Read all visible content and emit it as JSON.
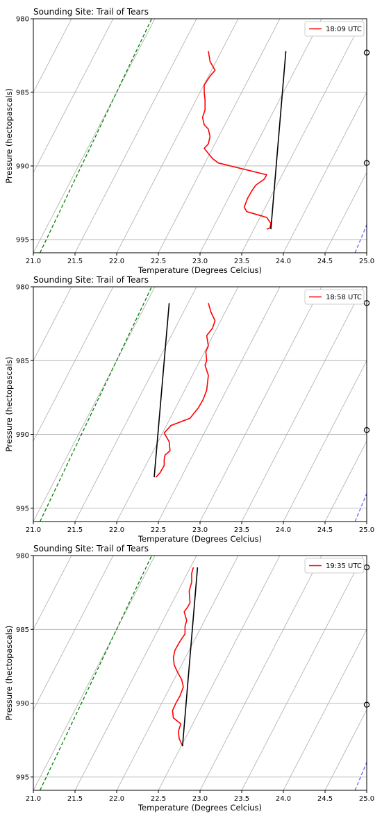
{
  "chart_data": [
    {
      "type": "line",
      "title": "Sounding Site: Trail of Tears",
      "xlabel": "Temperature (Degrees Celcius)",
      "ylabel": "Pressure (hectopascals)",
      "xlim": [
        21.0,
        25.0
      ],
      "ylim": [
        995.9,
        980.0
      ],
      "x_ticks": [
        "21.0",
        "21.5",
        "22.0",
        "22.5",
        "23.0",
        "23.5",
        "24.0",
        "24.5",
        "25.0"
      ],
      "y_ticks": [
        "980",
        "985",
        "990",
        "995"
      ],
      "grid": "horizontal",
      "legend_position": "top-right",
      "series": [
        {
          "name": "18:09 UTC",
          "color": "#ff0000",
          "x": [
            23.1,
            23.12,
            23.18,
            23.12,
            23.05,
            23.05,
            23.06,
            23.06,
            23.03,
            23.05,
            23.1,
            23.12,
            23.1,
            23.05,
            23.15,
            23.22,
            23.8,
            23.77,
            23.67,
            23.62,
            23.57,
            23.53,
            23.56,
            23.8,
            23.85,
            23.84,
            23.8
          ],
          "y": [
            982.2,
            982.9,
            983.5,
            983.9,
            984.5,
            985.0,
            985.5,
            986.2,
            986.7,
            987.2,
            987.5,
            988.0,
            988.5,
            988.8,
            989.5,
            989.8,
            990.6,
            990.9,
            991.3,
            991.7,
            992.2,
            992.8,
            993.1,
            993.5,
            993.9,
            994.2,
            994.3
          ]
        },
        {
          "name": "",
          "color": "#000000",
          "x": [
            23.85,
            24.03
          ],
          "y": [
            994.3,
            982.2
          ]
        },
        {
          "name": "",
          "color": "#008000",
          "dashed": true,
          "x": [
            21.08,
            22.42
          ],
          "y": [
            995.9,
            980.0
          ]
        },
        {
          "name": "",
          "color": "#6666ff",
          "dashed": true,
          "x": [
            24.86,
            25.0
          ],
          "y": [
            995.9,
            994.0
          ]
        }
      ],
      "markers": [
        {
          "x": 25.0,
          "y": 982.3
        },
        {
          "x": 25.0,
          "y": 989.8
        }
      ]
    },
    {
      "type": "line",
      "title": "Sounding Site: Trail of Tears",
      "xlabel": "Temperature (Degrees Celcius)",
      "ylabel": "Pressure (hectopascals)",
      "xlim": [
        21.0,
        25.0
      ],
      "ylim": [
        995.9,
        980.0
      ],
      "x_ticks": [
        "21.0",
        "21.5",
        "22.0",
        "22.5",
        "23.0",
        "23.5",
        "24.0",
        "24.5",
        "25.0"
      ],
      "y_ticks": [
        "980",
        "985",
        "990",
        "995"
      ],
      "grid": "horizontal",
      "legend_position": "top-right",
      "series": [
        {
          "name": "18:58 UTC",
          "color": "#ff0000",
          "x": [
            23.1,
            23.13,
            23.18,
            23.15,
            23.08,
            23.1,
            23.07,
            23.08,
            23.06,
            23.1,
            23.08,
            23.04,
            22.98,
            22.88,
            22.65,
            22.57,
            22.63,
            22.64,
            22.58,
            22.57,
            22.57,
            22.52,
            22.47
          ],
          "y": [
            981.1,
            981.7,
            982.3,
            982.8,
            983.3,
            984.0,
            984.4,
            985.0,
            985.3,
            986.0,
            987.0,
            987.6,
            988.2,
            988.9,
            989.4,
            989.9,
            990.5,
            991.1,
            991.4,
            991.7,
            992.1,
            992.6,
            992.9
          ]
        },
        {
          "name": "",
          "color": "#000000",
          "x": [
            22.45,
            22.63
          ],
          "y": [
            992.9,
            981.1
          ]
        },
        {
          "name": "",
          "color": "#008000",
          "dashed": true,
          "x": [
            21.08,
            22.42
          ],
          "y": [
            995.9,
            980.0
          ]
        },
        {
          "name": "",
          "color": "#6666ff",
          "dashed": true,
          "x": [
            24.86,
            25.0
          ],
          "y": [
            995.9,
            994.0
          ]
        }
      ],
      "markers": [
        {
          "x": 25.0,
          "y": 981.1
        },
        {
          "x": 25.0,
          "y": 989.7
        }
      ]
    },
    {
      "type": "line",
      "title": "Sounding Site: Trail of Tears",
      "xlabel": "Temperature (Degrees Celcius)",
      "ylabel": "Pressure (hectopascals)",
      "xlim": [
        21.0,
        25.0
      ],
      "ylim": [
        995.9,
        980.0
      ],
      "x_ticks": [
        "21.0",
        "21.5",
        "22.0",
        "22.5",
        "23.0",
        "23.5",
        "24.0",
        "24.5",
        "25.0"
      ],
      "y_ticks": [
        "980",
        "985",
        "990",
        "995"
      ],
      "grid": "horizontal",
      "legend_position": "top-right",
      "series": [
        {
          "name": "19:35 UTC",
          "color": "#ff0000",
          "x": [
            22.92,
            22.9,
            22.9,
            22.87,
            22.88,
            22.85,
            22.81,
            22.84,
            22.82,
            22.82,
            22.76,
            22.7,
            22.68,
            22.69,
            22.73,
            22.78,
            22.8,
            22.76,
            22.71,
            22.67,
            22.68,
            22.77,
            22.74,
            22.75,
            22.79
          ],
          "y": [
            980.8,
            981.2,
            981.8,
            982.4,
            983.2,
            983.5,
            983.8,
            984.4,
            984.8,
            985.3,
            985.8,
            986.4,
            986.9,
            987.4,
            987.9,
            988.4,
            988.9,
            989.5,
            990.0,
            990.5,
            991.0,
            991.4,
            991.9,
            992.4,
            992.9
          ]
        },
        {
          "name": "",
          "color": "#000000",
          "x": [
            22.79,
            22.97
          ],
          "y": [
            992.9,
            980.8
          ]
        },
        {
          "name": "",
          "color": "#008000",
          "dashed": true,
          "x": [
            21.08,
            22.42
          ],
          "y": [
            995.9,
            980.0
          ]
        },
        {
          "name": "",
          "color": "#6666ff",
          "dashed": true,
          "x": [
            24.86,
            25.0
          ],
          "y": [
            995.9,
            994.0
          ]
        }
      ],
      "markers": [
        {
          "x": 25.0,
          "y": 980.8
        },
        {
          "x": 25.0,
          "y": 990.1
        }
      ]
    }
  ]
}
